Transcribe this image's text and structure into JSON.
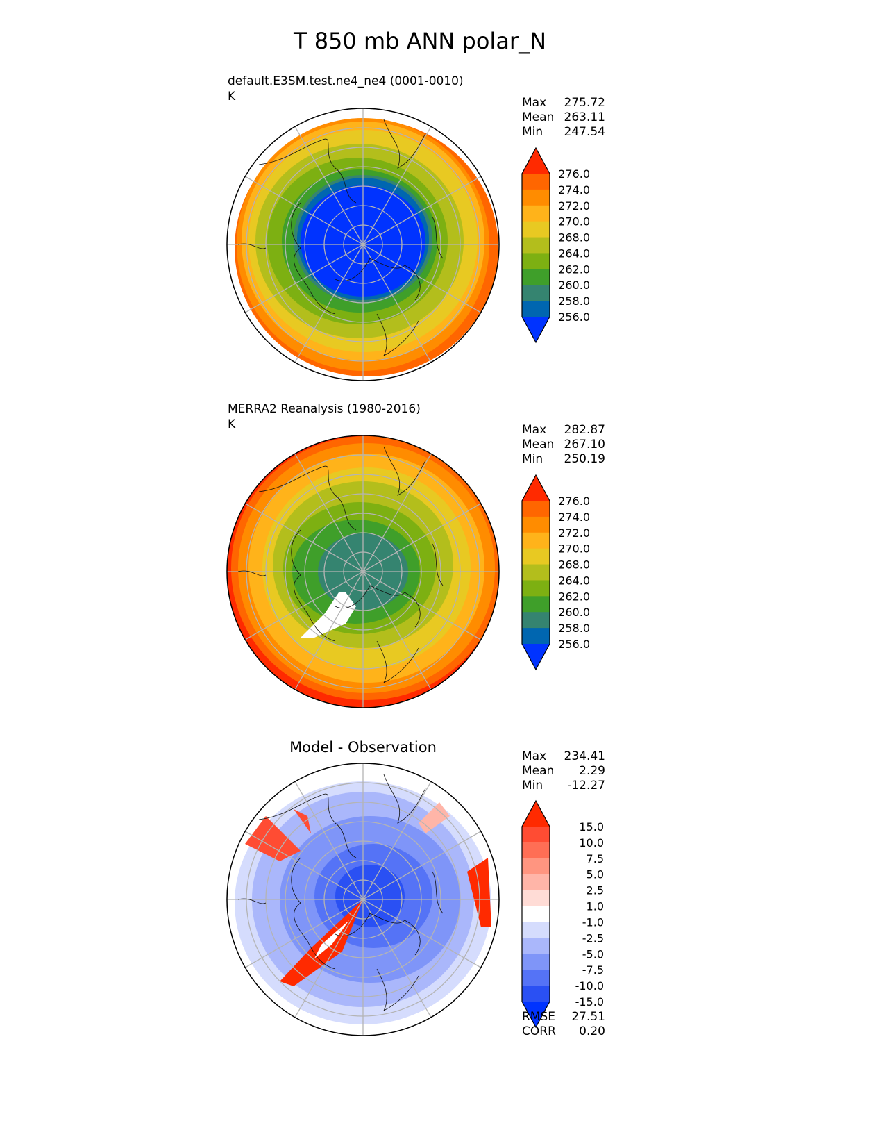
{
  "figure_title": "T 850 mb ANN polar_N",
  "chart_data": [
    {
      "type": "heatmap",
      "projection": "north-polar-stereographic",
      "title_left": "default.E3SM.test.ne4_ne4 (0001-0010)",
      "units": "K",
      "stats": {
        "max_label": "Max",
        "max": "275.72",
        "mean_label": "Mean",
        "mean": "263.11",
        "min_label": "Min",
        "min": "247.54"
      },
      "colorbar": {
        "ticks": [
          "276.0",
          "274.0",
          "272.0",
          "270.0",
          "268.0",
          "264.0",
          "262.0",
          "260.0",
          "258.0",
          "256.0"
        ],
        "colors": [
          "#ff2a00",
          "#ff6600",
          "#ff8c00",
          "#ffb31a",
          "#e8c922",
          "#b3be1c",
          "#7db012",
          "#3f9f2a",
          "#358470",
          "#0066b0",
          "#0033ff"
        ]
      }
    },
    {
      "type": "heatmap",
      "projection": "north-polar-stereographic",
      "title_left": "MERRA2 Reanalysis (1980-2016)",
      "units": "K",
      "stats": {
        "max_label": "Max",
        "max": "282.87",
        "mean_label": "Mean",
        "mean": "267.10",
        "min_label": "Min",
        "min": "250.19"
      },
      "colorbar": {
        "ticks": [
          "276.0",
          "274.0",
          "272.0",
          "270.0",
          "268.0",
          "264.0",
          "262.0",
          "260.0",
          "258.0",
          "256.0"
        ],
        "colors": [
          "#ff2a00",
          "#ff6600",
          "#ff8c00",
          "#ffb31a",
          "#e8c922",
          "#b3be1c",
          "#7db012",
          "#3f9f2a",
          "#358470",
          "#0066b0",
          "#0033ff"
        ]
      }
    },
    {
      "type": "heatmap",
      "projection": "north-polar-stereographic",
      "title_center": "Model - Observation",
      "stats": {
        "max_label": "Max",
        "max": "234.41",
        "mean_label": "Mean",
        "mean": "2.29",
        "min_label": "Min",
        "min": "-12.27"
      },
      "colorbar": {
        "ticks": [
          "15.0",
          "10.0",
          "7.5",
          "5.0",
          "2.5",
          "1.0",
          "-1.0",
          "-2.5",
          "-5.0",
          "-7.5",
          "-10.0",
          "-15.0"
        ],
        "colors": [
          "#ff2a00",
          "#ff4c33",
          "#ff6e55",
          "#ff9580",
          "#ffb5a8",
          "#ffdcd6",
          "#ffffff",
          "#d5dcfd",
          "#aab7fb",
          "#7f95f8",
          "#5573f6",
          "#2a50f3",
          "#0033ff"
        ]
      },
      "metrics": {
        "rmse_label": "RMSE",
        "rmse": "27.51",
        "corr_label": "CORR",
        "corr": "0.20"
      }
    }
  ]
}
